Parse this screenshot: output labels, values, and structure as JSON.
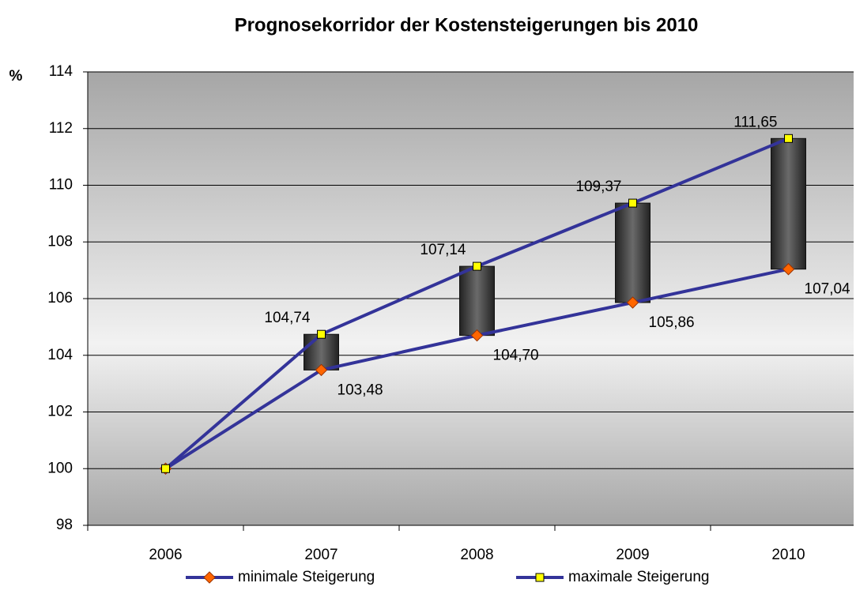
{
  "chart_data": {
    "type": "line",
    "title": "Prognosekorridor der Kostensteigerungen bis 2010",
    "ylabel": "%",
    "categories": [
      "2006",
      "2007",
      "2008",
      "2009",
      "2010"
    ],
    "series": [
      {
        "name": "minimale Steigerung",
        "color": "#333399",
        "marker_color": "#ff6600",
        "values": [
          100,
          103.48,
          104.7,
          105.86,
          107.04
        ],
        "value_labels": [
          null,
          "103,48",
          "104,70",
          "105,86",
          "107,04"
        ]
      },
      {
        "name": "maximale Steigerung",
        "color": "#333399",
        "marker_color": "#ffff00",
        "values": [
          100,
          104.74,
          107.14,
          109.37,
          111.65
        ],
        "value_labels": [
          null,
          "104,74",
          "107,14",
          "109,37",
          "111,65"
        ]
      }
    ],
    "ylim": [
      98,
      114
    ],
    "yticks": [
      98,
      100,
      102,
      104,
      106,
      108,
      110,
      112,
      114
    ],
    "grid": true,
    "legend": "bottom"
  }
}
